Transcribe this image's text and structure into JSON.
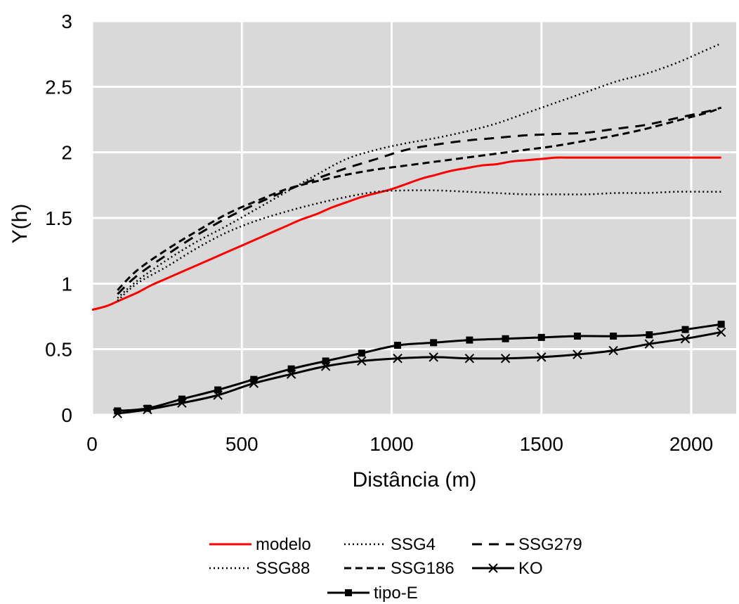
{
  "chart_data": {
    "type": "line",
    "xlabel": "Distância (m)",
    "ylabel": "Y(h)",
    "xlim": [
      0,
      2150
    ],
    "ylim": [
      0,
      3
    ],
    "xticks": [
      "0",
      "500",
      "1000",
      "1500",
      "2000"
    ],
    "yticks": [
      "0",
      "0.5",
      "1",
      "1.5",
      "2",
      "2.5",
      "3"
    ],
    "grid": true,
    "legend_position": "bottom",
    "colors": {
      "plot_background": "#d9d9d9",
      "grid": "#ffffff",
      "modelo": "#ff0000",
      "other_series": "#000000"
    },
    "series": [
      {
        "name": "modelo",
        "style": "solid-red",
        "points": [
          [
            0,
            0.8
          ],
          [
            50,
            0.83
          ],
          [
            100,
            0.88
          ],
          [
            150,
            0.93
          ],
          [
            200,
            0.99
          ],
          [
            250,
            1.04
          ],
          [
            300,
            1.09
          ],
          [
            350,
            1.14
          ],
          [
            400,
            1.19
          ],
          [
            450,
            1.24
          ],
          [
            500,
            1.29
          ],
          [
            550,
            1.34
          ],
          [
            600,
            1.39
          ],
          [
            650,
            1.44
          ],
          [
            700,
            1.49
          ],
          [
            750,
            1.53
          ],
          [
            800,
            1.58
          ],
          [
            850,
            1.62
          ],
          [
            900,
            1.66
          ],
          [
            950,
            1.69
          ],
          [
            1000,
            1.72
          ],
          [
            1050,
            1.76
          ],
          [
            1100,
            1.8
          ],
          [
            1150,
            1.83
          ],
          [
            1200,
            1.86
          ],
          [
            1250,
            1.88
          ],
          [
            1300,
            1.9
          ],
          [
            1350,
            1.91
          ],
          [
            1400,
            1.93
          ],
          [
            1450,
            1.94
          ],
          [
            1500,
            1.95
          ],
          [
            1550,
            1.96
          ],
          [
            1600,
            1.96
          ],
          [
            1800,
            1.96
          ],
          [
            2000,
            1.96
          ],
          [
            2100,
            1.96
          ]
        ]
      },
      {
        "name": "SSG4",
        "style": "dotted",
        "points": [
          [
            85,
            0.89
          ],
          [
            150,
            1.02
          ],
          [
            250,
            1.18
          ],
          [
            350,
            1.32
          ],
          [
            450,
            1.44
          ],
          [
            550,
            1.57
          ],
          [
            650,
            1.7
          ],
          [
            750,
            1.83
          ],
          [
            850,
            1.95
          ],
          [
            950,
            2.02
          ],
          [
            1050,
            2.07
          ],
          [
            1150,
            2.11
          ],
          [
            1250,
            2.16
          ],
          [
            1350,
            2.22
          ],
          [
            1450,
            2.3
          ],
          [
            1550,
            2.38
          ],
          [
            1650,
            2.46
          ],
          [
            1750,
            2.54
          ],
          [
            1850,
            2.6
          ],
          [
            1950,
            2.68
          ],
          [
            2050,
            2.78
          ],
          [
            2100,
            2.83
          ]
        ]
      },
      {
        "name": "SSG279",
        "style": "dashed-long",
        "points": [
          [
            85,
            0.92
          ],
          [
            150,
            1.06
          ],
          [
            250,
            1.22
          ],
          [
            350,
            1.37
          ],
          [
            450,
            1.5
          ],
          [
            550,
            1.61
          ],
          [
            650,
            1.71
          ],
          [
            750,
            1.8
          ],
          [
            850,
            1.88
          ],
          [
            950,
            1.95
          ],
          [
            1050,
            2.02
          ],
          [
            1150,
            2.06
          ],
          [
            1250,
            2.09
          ],
          [
            1350,
            2.11
          ],
          [
            1450,
            2.13
          ],
          [
            1550,
            2.14
          ],
          [
            1650,
            2.15
          ],
          [
            1750,
            2.18
          ],
          [
            1850,
            2.21
          ],
          [
            1950,
            2.26
          ],
          [
            2050,
            2.31
          ],
          [
            2100,
            2.34
          ]
        ]
      },
      {
        "name": "SSG88",
        "style": "dotted",
        "points": [
          [
            85,
            0.87
          ],
          [
            150,
            1.0
          ],
          [
            250,
            1.13
          ],
          [
            350,
            1.27
          ],
          [
            450,
            1.39
          ],
          [
            550,
            1.48
          ],
          [
            650,
            1.55
          ],
          [
            750,
            1.61
          ],
          [
            850,
            1.66
          ],
          [
            950,
            1.7
          ],
          [
            1050,
            1.71
          ],
          [
            1150,
            1.71
          ],
          [
            1250,
            1.7
          ],
          [
            1350,
            1.69
          ],
          [
            1450,
            1.68
          ],
          [
            1550,
            1.68
          ],
          [
            1650,
            1.68
          ],
          [
            1750,
            1.69
          ],
          [
            1850,
            1.69
          ],
          [
            1950,
            1.7
          ],
          [
            2050,
            1.7
          ],
          [
            2100,
            1.7
          ]
        ]
      },
      {
        "name": "SSG186",
        "style": "dashed",
        "points": [
          [
            85,
            0.95
          ],
          [
            150,
            1.1
          ],
          [
            250,
            1.26
          ],
          [
            350,
            1.4
          ],
          [
            450,
            1.53
          ],
          [
            550,
            1.63
          ],
          [
            650,
            1.72
          ],
          [
            750,
            1.78
          ],
          [
            850,
            1.83
          ],
          [
            950,
            1.87
          ],
          [
            1050,
            1.9
          ],
          [
            1150,
            1.93
          ],
          [
            1250,
            1.96
          ],
          [
            1350,
            1.99
          ],
          [
            1450,
            2.02
          ],
          [
            1550,
            2.05
          ],
          [
            1650,
            2.09
          ],
          [
            1750,
            2.13
          ],
          [
            1850,
            2.18
          ],
          [
            1950,
            2.24
          ],
          [
            2050,
            2.3
          ],
          [
            2100,
            2.34
          ]
        ]
      },
      {
        "name": "KO",
        "style": "solid-x",
        "points": [
          [
            85,
            0.01
          ],
          [
            185,
            0.04
          ],
          [
            300,
            0.09
          ],
          [
            420,
            0.15
          ],
          [
            540,
            0.24
          ],
          [
            665,
            0.31
          ],
          [
            780,
            0.37
          ],
          [
            900,
            0.41
          ],
          [
            1020,
            0.43
          ],
          [
            1140,
            0.44
          ],
          [
            1260,
            0.43
          ],
          [
            1380,
            0.43
          ],
          [
            1500,
            0.44
          ],
          [
            1620,
            0.46
          ],
          [
            1740,
            0.49
          ],
          [
            1860,
            0.54
          ],
          [
            1980,
            0.58
          ],
          [
            2100,
            0.63
          ]
        ]
      },
      {
        "name": "tipo-E",
        "style": "solid-square",
        "points": [
          [
            85,
            0.03
          ],
          [
            185,
            0.05
          ],
          [
            300,
            0.12
          ],
          [
            420,
            0.19
          ],
          [
            540,
            0.27
          ],
          [
            665,
            0.35
          ],
          [
            780,
            0.41
          ],
          [
            900,
            0.47
          ],
          [
            1020,
            0.53
          ],
          [
            1140,
            0.55
          ],
          [
            1260,
            0.57
          ],
          [
            1380,
            0.58
          ],
          [
            1500,
            0.59
          ],
          [
            1620,
            0.6
          ],
          [
            1740,
            0.6
          ],
          [
            1860,
            0.61
          ],
          [
            1980,
            0.65
          ],
          [
            2100,
            0.69
          ]
        ]
      }
    ]
  }
}
